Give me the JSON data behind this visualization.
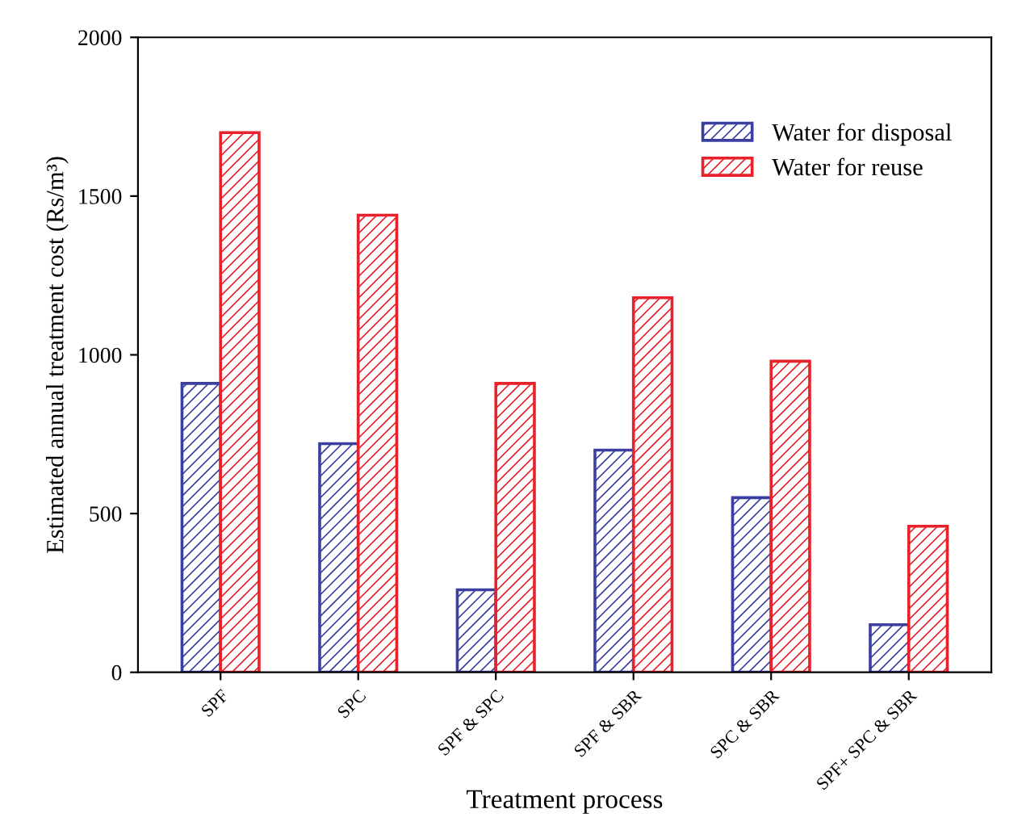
{
  "chart_data": {
    "type": "bar",
    "xlabel": "Treatment process",
    "ylabel": "Estimated annual treatment cost (Rs/m³)",
    "categories": [
      "SPF",
      "SPC",
      "SPF & SPC",
      "SPF & SBR",
      "SPC & SBR",
      "SPF+ SPC & SBR"
    ],
    "series": [
      {
        "name": "Water for disposal",
        "color": "#3a3fa0",
        "values": [
          910,
          720,
          260,
          700,
          550,
          150
        ]
      },
      {
        "name": "Water for reuse",
        "color": "#e8212a",
        "values": [
          1700,
          1440,
          910,
          1180,
          980,
          460
        ]
      }
    ],
    "ylim": [
      0,
      2000
    ],
    "yticks": [
      0,
      500,
      1000,
      1500,
      2000
    ],
    "grid": false,
    "legend": "top right"
  }
}
